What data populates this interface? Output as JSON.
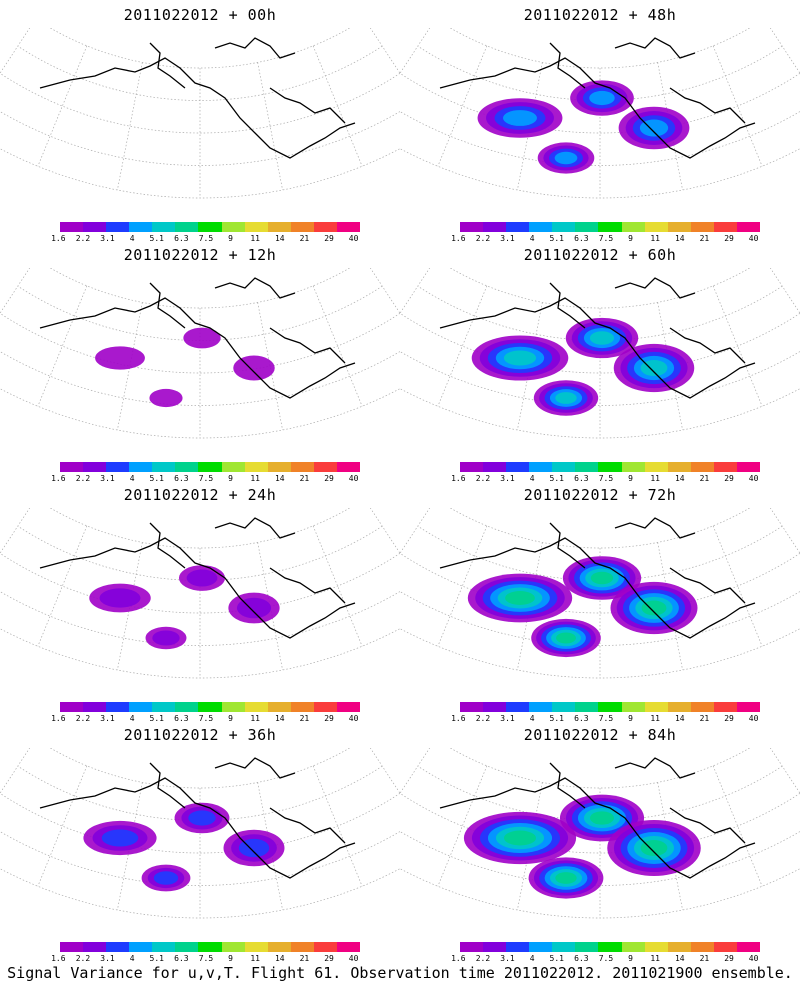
{
  "panels": [
    {
      "title": "2011022012 + 00h",
      "intensity": 0.02
    },
    {
      "title": "2011022012 + 48h",
      "intensity": 0.55
    },
    {
      "title": "2011022012 + 12h",
      "intensity": 0.1
    },
    {
      "title": "2011022012 + 60h",
      "intensity": 0.7
    },
    {
      "title": "2011022012 + 24h",
      "intensity": 0.25
    },
    {
      "title": "2011022012 + 72h",
      "intensity": 0.8
    },
    {
      "title": "2011022012 + 36h",
      "intensity": 0.4
    },
    {
      "title": "2011022012 + 84h",
      "intensity": 0.9
    }
  ],
  "colorbar": {
    "labels": [
      "1.6",
      "2.2",
      "3.1",
      "4",
      "5.1",
      "6.3",
      "7.5",
      "9",
      "11",
      "14",
      "21",
      "29",
      "40"
    ],
    "colors": [
      "#a000c8",
      "#8200dc",
      "#1e3cff",
      "#00a0ff",
      "#00c8c8",
      "#00d28c",
      "#00dc00",
      "#a0e632",
      "#e6dc32",
      "#e6af2d",
      "#f08228",
      "#fa3c3c",
      "#f00082"
    ]
  },
  "caption": "Signal Variance for u,v,T. Flight 61. Observation time 2011022012. 2011021900 ensemble."
}
